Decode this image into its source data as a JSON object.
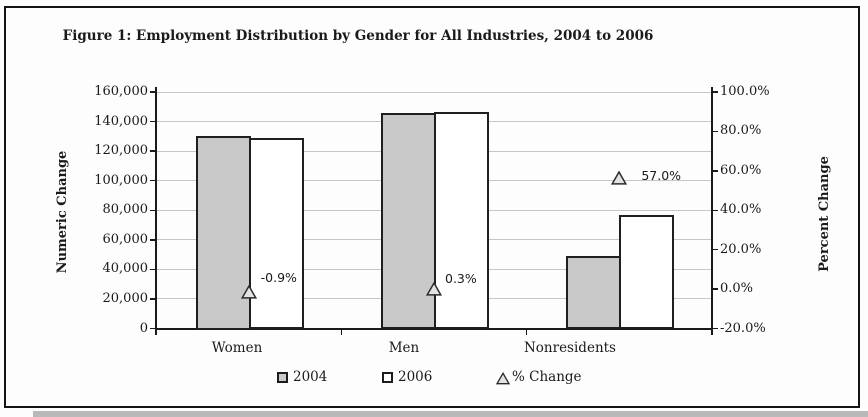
{
  "title": "Figure 1: Employment Distribution by Gender for All Industries, 2004 to 2006",
  "chart_data": {
    "type": "bar",
    "title": "Figure 1: Employment Distribution by Gender for All Industries, 2004 to 2006",
    "categories": [
      "Women",
      "Men",
      "Nonresidents"
    ],
    "series": [
      {
        "name": "2004",
        "type": "bar",
        "axis": "numeric",
        "values": [
          130000,
          146000,
          49000
        ]
      },
      {
        "name": "2006",
        "type": "bar",
        "axis": "numeric",
        "values": [
          128800,
          146400,
          76900
        ]
      },
      {
        "name": "% Change",
        "type": "marker",
        "axis": "percent",
        "values": [
          -0.9,
          0.3,
          57.0
        ],
        "point_labels": [
          "-0.9%",
          "0.3%",
          "57.0%"
        ]
      }
    ],
    "numeric_axis": {
      "title": "Numeric Change",
      "min": 0,
      "max": 160000,
      "step": 20000,
      "tick_labels": [
        "0",
        "20,000",
        "40,000",
        "60,000",
        "80,000",
        "100,000",
        "120,000",
        "140,000",
        "160,000"
      ]
    },
    "percent_axis": {
      "title": "Percent Change",
      "min": -20,
      "max": 100,
      "step": 20,
      "tick_labels": [
        "-20.0%",
        "0.0%",
        "20.0%",
        "40.0%",
        "60.0%",
        "80.0%",
        "100.0%"
      ]
    },
    "legend": [
      {
        "label": "2004",
        "swatch": "gray-square"
      },
      {
        "label": "2006",
        "swatch": "white-square"
      },
      {
        "label": "% Change",
        "swatch": "triangle"
      }
    ],
    "legend_position": "bottom",
    "grid": true,
    "colors": {
      "bar_2004_fill": "#c9c9c9",
      "bar_2006_fill": "#ffffff",
      "bar_border": "#1f1f1f",
      "gridline": "#c6c6c6",
      "marker_fill": "#e3e3e3",
      "marker_border": "#2b2b2b",
      "text": "#1a1a1a"
    }
  }
}
